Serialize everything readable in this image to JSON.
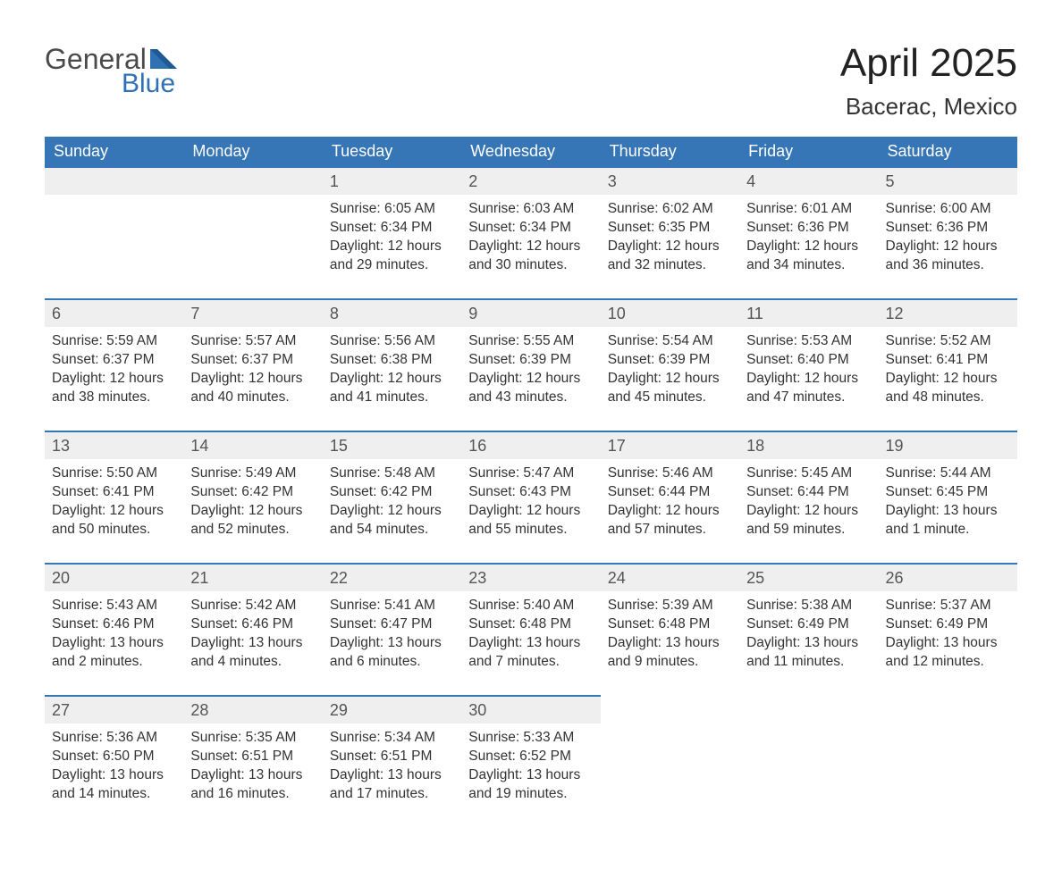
{
  "brand": {
    "word1": "General",
    "word2": "Blue"
  },
  "title": {
    "month": "April 2025",
    "location": "Bacerac, Mexico"
  },
  "colors": {
    "header_bg": "#3675b6",
    "header_text": "#ffffff",
    "daynum_bg": "#efefef",
    "daynum_border": "#3675b6",
    "body_text": "#333333",
    "brand_blue": "#2f71b3"
  },
  "weekdays": [
    "Sunday",
    "Monday",
    "Tuesday",
    "Wednesday",
    "Thursday",
    "Friday",
    "Saturday"
  ],
  "weeks": [
    {
      "days": [
        null,
        null,
        {
          "n": "1",
          "sunrise": "Sunrise: 6:05 AM",
          "sunset": "Sunset: 6:34 PM",
          "dl1": "Daylight: 12 hours",
          "dl2": "and 29 minutes."
        },
        {
          "n": "2",
          "sunrise": "Sunrise: 6:03 AM",
          "sunset": "Sunset: 6:34 PM",
          "dl1": "Daylight: 12 hours",
          "dl2": "and 30 minutes."
        },
        {
          "n": "3",
          "sunrise": "Sunrise: 6:02 AM",
          "sunset": "Sunset: 6:35 PM",
          "dl1": "Daylight: 12 hours",
          "dl2": "and 32 minutes."
        },
        {
          "n": "4",
          "sunrise": "Sunrise: 6:01 AM",
          "sunset": "Sunset: 6:36 PM",
          "dl1": "Daylight: 12 hours",
          "dl2": "and 34 minutes."
        },
        {
          "n": "5",
          "sunrise": "Sunrise: 6:00 AM",
          "sunset": "Sunset: 6:36 PM",
          "dl1": "Daylight: 12 hours",
          "dl2": "and 36 minutes."
        }
      ]
    },
    {
      "days": [
        {
          "n": "6",
          "sunrise": "Sunrise: 5:59 AM",
          "sunset": "Sunset: 6:37 PM",
          "dl1": "Daylight: 12 hours",
          "dl2": "and 38 minutes."
        },
        {
          "n": "7",
          "sunrise": "Sunrise: 5:57 AM",
          "sunset": "Sunset: 6:37 PM",
          "dl1": "Daylight: 12 hours",
          "dl2": "and 40 minutes."
        },
        {
          "n": "8",
          "sunrise": "Sunrise: 5:56 AM",
          "sunset": "Sunset: 6:38 PM",
          "dl1": "Daylight: 12 hours",
          "dl2": "and 41 minutes."
        },
        {
          "n": "9",
          "sunrise": "Sunrise: 5:55 AM",
          "sunset": "Sunset: 6:39 PM",
          "dl1": "Daylight: 12 hours",
          "dl2": "and 43 minutes."
        },
        {
          "n": "10",
          "sunrise": "Sunrise: 5:54 AM",
          "sunset": "Sunset: 6:39 PM",
          "dl1": "Daylight: 12 hours",
          "dl2": "and 45 minutes."
        },
        {
          "n": "11",
          "sunrise": "Sunrise: 5:53 AM",
          "sunset": "Sunset: 6:40 PM",
          "dl1": "Daylight: 12 hours",
          "dl2": "and 47 minutes."
        },
        {
          "n": "12",
          "sunrise": "Sunrise: 5:52 AM",
          "sunset": "Sunset: 6:41 PM",
          "dl1": "Daylight: 12 hours",
          "dl2": "and 48 minutes."
        }
      ]
    },
    {
      "days": [
        {
          "n": "13",
          "sunrise": "Sunrise: 5:50 AM",
          "sunset": "Sunset: 6:41 PM",
          "dl1": "Daylight: 12 hours",
          "dl2": "and 50 minutes."
        },
        {
          "n": "14",
          "sunrise": "Sunrise: 5:49 AM",
          "sunset": "Sunset: 6:42 PM",
          "dl1": "Daylight: 12 hours",
          "dl2": "and 52 minutes."
        },
        {
          "n": "15",
          "sunrise": "Sunrise: 5:48 AM",
          "sunset": "Sunset: 6:42 PM",
          "dl1": "Daylight: 12 hours",
          "dl2": "and 54 minutes."
        },
        {
          "n": "16",
          "sunrise": "Sunrise: 5:47 AM",
          "sunset": "Sunset: 6:43 PM",
          "dl1": "Daylight: 12 hours",
          "dl2": "and 55 minutes."
        },
        {
          "n": "17",
          "sunrise": "Sunrise: 5:46 AM",
          "sunset": "Sunset: 6:44 PM",
          "dl1": "Daylight: 12 hours",
          "dl2": "and 57 minutes."
        },
        {
          "n": "18",
          "sunrise": "Sunrise: 5:45 AM",
          "sunset": "Sunset: 6:44 PM",
          "dl1": "Daylight: 12 hours",
          "dl2": "and 59 minutes."
        },
        {
          "n": "19",
          "sunrise": "Sunrise: 5:44 AM",
          "sunset": "Sunset: 6:45 PM",
          "dl1": "Daylight: 13 hours",
          "dl2": "and 1 minute."
        }
      ]
    },
    {
      "days": [
        {
          "n": "20",
          "sunrise": "Sunrise: 5:43 AM",
          "sunset": "Sunset: 6:46 PM",
          "dl1": "Daylight: 13 hours",
          "dl2": "and 2 minutes."
        },
        {
          "n": "21",
          "sunrise": "Sunrise: 5:42 AM",
          "sunset": "Sunset: 6:46 PM",
          "dl1": "Daylight: 13 hours",
          "dl2": "and 4 minutes."
        },
        {
          "n": "22",
          "sunrise": "Sunrise: 5:41 AM",
          "sunset": "Sunset: 6:47 PM",
          "dl1": "Daylight: 13 hours",
          "dl2": "and 6 minutes."
        },
        {
          "n": "23",
          "sunrise": "Sunrise: 5:40 AM",
          "sunset": "Sunset: 6:48 PM",
          "dl1": "Daylight: 13 hours",
          "dl2": "and 7 minutes."
        },
        {
          "n": "24",
          "sunrise": "Sunrise: 5:39 AM",
          "sunset": "Sunset: 6:48 PM",
          "dl1": "Daylight: 13 hours",
          "dl2": "and 9 minutes."
        },
        {
          "n": "25",
          "sunrise": "Sunrise: 5:38 AM",
          "sunset": "Sunset: 6:49 PM",
          "dl1": "Daylight: 13 hours",
          "dl2": "and 11 minutes."
        },
        {
          "n": "26",
          "sunrise": "Sunrise: 5:37 AM",
          "sunset": "Sunset: 6:49 PM",
          "dl1": "Daylight: 13 hours",
          "dl2": "and 12 minutes."
        }
      ]
    },
    {
      "days": [
        {
          "n": "27",
          "sunrise": "Sunrise: 5:36 AM",
          "sunset": "Sunset: 6:50 PM",
          "dl1": "Daylight: 13 hours",
          "dl2": "and 14 minutes."
        },
        {
          "n": "28",
          "sunrise": "Sunrise: 5:35 AM",
          "sunset": "Sunset: 6:51 PM",
          "dl1": "Daylight: 13 hours",
          "dl2": "and 16 minutes."
        },
        {
          "n": "29",
          "sunrise": "Sunrise: 5:34 AM",
          "sunset": "Sunset: 6:51 PM",
          "dl1": "Daylight: 13 hours",
          "dl2": "and 17 minutes."
        },
        {
          "n": "30",
          "sunrise": "Sunrise: 5:33 AM",
          "sunset": "Sunset: 6:52 PM",
          "dl1": "Daylight: 13 hours",
          "dl2": "and 19 minutes."
        },
        null,
        null,
        null
      ]
    }
  ]
}
